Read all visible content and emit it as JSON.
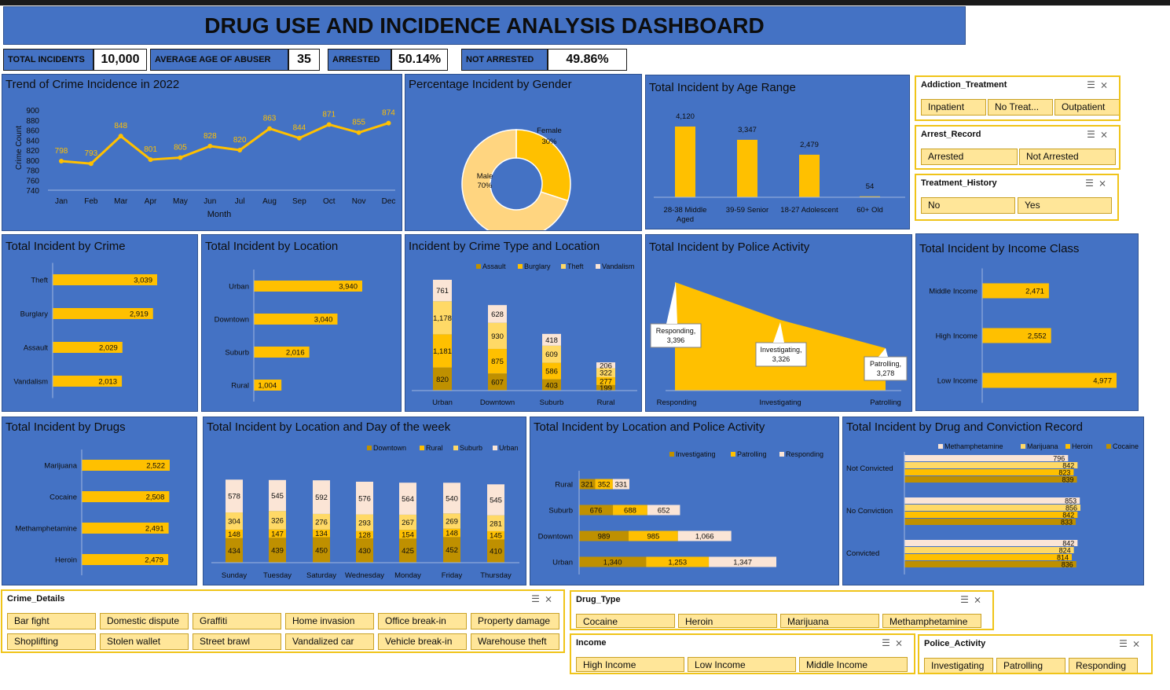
{
  "title": "DRUG USE AND INCIDENCE ANALYSIS DASHBOARD",
  "kpis": [
    {
      "label": "TOTAL INCIDENTS",
      "value": "10,000"
    },
    {
      "label": "AVERAGE AGE OF ABUSER",
      "value": "35"
    },
    {
      "label": "ARRESTED",
      "value": "50.14%"
    },
    {
      "label": "NOT ARRESTED",
      "value": "49.86%"
    }
  ],
  "colors": {
    "panel": "#4472c4",
    "dark_gold": "#bf9000",
    "gold": "#ffc000",
    "light": "#ffd966",
    "pale": "#fbe5d6",
    "line": "#ffc000"
  },
  "chart_data": [
    {
      "id": "trend",
      "type": "line",
      "title": "Trend of Crime Incidence in 2022",
      "xlabel": "Month",
      "ylabel": "Crime Count",
      "categories": [
        "Jan",
        "Feb",
        "Mar",
        "Apr",
        "May",
        "Jun",
        "Jul",
        "Aug",
        "Sep",
        "Oct",
        "Nov",
        "Dec"
      ],
      "values": [
        798,
        793,
        848,
        801,
        805,
        828,
        820,
        863,
        844,
        871,
        855,
        874
      ],
      "yticks": [
        "900",
        "880",
        "860",
        "840",
        "820",
        "800",
        "780",
        "760",
        "740"
      ],
      "ylim": [
        740,
        900
      ]
    },
    {
      "id": "gender",
      "type": "pie",
      "title": "Percentage Incident by Gender",
      "slices": [
        {
          "name": "Female",
          "label": "30%",
          "value": 30
        },
        {
          "name": "Male",
          "label": "70%",
          "value": 70
        }
      ]
    },
    {
      "id": "age",
      "type": "bar",
      "title": "Total Incident by Age Range",
      "categories": [
        "28-38 Middle Aged",
        "39-59 Senior",
        "18-27 Adolescent",
        "60+ Old"
      ],
      "values": [
        4120,
        3347,
        2479,
        54
      ],
      "labels": [
        "4,120",
        "3,347",
        "2,479",
        "54"
      ]
    },
    {
      "id": "crime",
      "type": "bar",
      "title": "Total Incident by Crime",
      "orientation": "horizontal",
      "categories": [
        "Theft",
        "Burglary",
        "Assault",
        "Vandalism"
      ],
      "values": [
        3039,
        2919,
        2029,
        2013
      ],
      "labels": [
        "3,039",
        "2,919",
        "2,029",
        "2,013"
      ]
    },
    {
      "id": "location",
      "type": "bar",
      "title": "Total Incident by Location",
      "orientation": "horizontal",
      "categories": [
        "Urban",
        "Downtown",
        "Suburb",
        "Rural"
      ],
      "values": [
        3940,
        3040,
        2016,
        1004
      ],
      "labels": [
        "3,940",
        "3,040",
        "2,016",
        "1,004"
      ]
    },
    {
      "id": "crime_loc",
      "type": "bar",
      "stacked": true,
      "title": "Incident by Crime Type and Location",
      "categories": [
        "Urban",
        "Downtown",
        "Suburb",
        "Rural"
      ],
      "series": [
        {
          "name": "Assault",
          "values": [
            820,
            607,
            403,
            199
          ],
          "labels": [
            "820",
            "607",
            "403",
            "199"
          ]
        },
        {
          "name": "Burglary",
          "values": [
            1181,
            875,
            586,
            277
          ],
          "labels": [
            "1,181",
            "875",
            "586",
            "277"
          ]
        },
        {
          "name": "Theft",
          "values": [
            1178,
            930,
            609,
            322
          ],
          "labels": [
            "1,178",
            "930",
            "609",
            "322"
          ]
        },
        {
          "name": "Vandalism",
          "values": [
            761,
            628,
            418,
            206
          ],
          "labels": [
            "761",
            "628",
            "418",
            "206"
          ]
        }
      ]
    },
    {
      "id": "police",
      "type": "area",
      "title": "Total Incident by Police Activity",
      "categories": [
        "Responding",
        "Investigating",
        "Patrolling"
      ],
      "values": [
        3396,
        3326,
        3278
      ],
      "callouts": [
        "Responding,",
        "3,396",
        "Investigating,",
        "3,326",
        "Patrolling,",
        "3,278"
      ]
    },
    {
      "id": "income",
      "type": "bar",
      "title": "Total Incident by Income Class",
      "orientation": "horizontal",
      "categories": [
        "Middle Income",
        "High Income",
        "Low Income"
      ],
      "values": [
        2471,
        2552,
        4977
      ],
      "labels": [
        "2,471",
        "2,552",
        "4,977"
      ]
    },
    {
      "id": "drugs",
      "type": "bar",
      "title": "Total Incident by Drugs",
      "orientation": "horizontal",
      "categories": [
        "Marijuana",
        "Cocaine",
        "Methamphetamine",
        "Heroin"
      ],
      "values": [
        2522,
        2508,
        2491,
        2479
      ],
      "labels": [
        "2,522",
        "2,508",
        "2,491",
        "2,479"
      ]
    },
    {
      "id": "loc_day",
      "type": "bar",
      "stacked": true,
      "title": "Total Incident by Location and Day of the week",
      "categories": [
        "Sunday",
        "Tuesday",
        "Saturday",
        "Wednesday",
        "Monday",
        "Friday",
        "Thursday"
      ],
      "series": [
        {
          "name": "Downtown",
          "values": [
            434,
            439,
            450,
            430,
            425,
            452,
            410
          ]
        },
        {
          "name": "Rural",
          "values": [
            148,
            147,
            134,
            128,
            154,
            148,
            145
          ]
        },
        {
          "name": "Suburb",
          "values": [
            304,
            326,
            276,
            293,
            267,
            269,
            281
          ]
        },
        {
          "name": "Urban",
          "values": [
            578,
            545,
            592,
            576,
            564,
            540,
            545
          ]
        }
      ]
    },
    {
      "id": "loc_police",
      "type": "bar",
      "stacked": true,
      "orientation": "horizontal",
      "title": "Total Incident by Location and Police Activity",
      "categories": [
        "Rural",
        "Suburb",
        "Downtown",
        "Urban"
      ],
      "series": [
        {
          "name": "Investigating",
          "values": [
            321,
            676,
            989,
            1340
          ],
          "labels": [
            "321",
            "676",
            "989",
            "1,340"
          ]
        },
        {
          "name": "Patrolling",
          "values": [
            352,
            688,
            985,
            1253
          ],
          "labels": [
            "352",
            "688",
            "985",
            "1,253"
          ]
        },
        {
          "name": "Responding",
          "values": [
            331,
            652,
            1066,
            1347
          ],
          "labels": [
            "331",
            "652",
            "1,066",
            "1,347"
          ]
        }
      ]
    },
    {
      "id": "drug_conv",
      "type": "bar",
      "orientation": "horizontal",
      "title": "Total Incident by Drug and Conviction Record",
      "categories": [
        "Not Convicted",
        "No Conviction",
        "Convicted"
      ],
      "series": [
        {
          "name": "Methamphetamine",
          "values": [
            796,
            853,
            842
          ]
        },
        {
          "name": "Marijuana",
          "values": [
            842,
            856,
            824
          ]
        },
        {
          "name": "Heroin",
          "values": [
            823,
            842,
            814
          ]
        },
        {
          "name": "Cocaine",
          "values": [
            839,
            833,
            836
          ]
        }
      ]
    }
  ],
  "slicers": {
    "addiction": {
      "title": "Addiction_Treatment",
      "items": [
        "Inpatient",
        "No Treat...",
        "Outpatient"
      ]
    },
    "arrest": {
      "title": "Arrest_Record",
      "items": [
        "Arrested",
        "Not Arrested"
      ]
    },
    "treatment": {
      "title": "Treatment_History",
      "items": [
        "No",
        "Yes"
      ]
    },
    "crime_details": {
      "title": "Crime_Details",
      "items": [
        "Bar fight",
        "Domestic dispute",
        "Graffiti",
        "Home invasion",
        "Office break-in",
        "Property damage",
        "Shoplifting",
        "Stolen wallet",
        "Street brawl",
        "Vandalized car",
        "Vehicle break-in",
        "Warehouse theft"
      ]
    },
    "drug_type": {
      "title": "Drug_Type",
      "items": [
        "Cocaine",
        "Heroin",
        "Marijuana",
        "Methamphetamine"
      ]
    },
    "income": {
      "title": "Income",
      "items": [
        "High Income",
        "Low Income",
        "Middle Income"
      ]
    },
    "police_activity": {
      "title": "Police_Activity",
      "items": [
        "Investigating",
        "Patrolling",
        "Responding"
      ]
    }
  },
  "icons": {
    "multi_select": "multi-select-icon",
    "clear_filter": "clear-filter-icon"
  }
}
